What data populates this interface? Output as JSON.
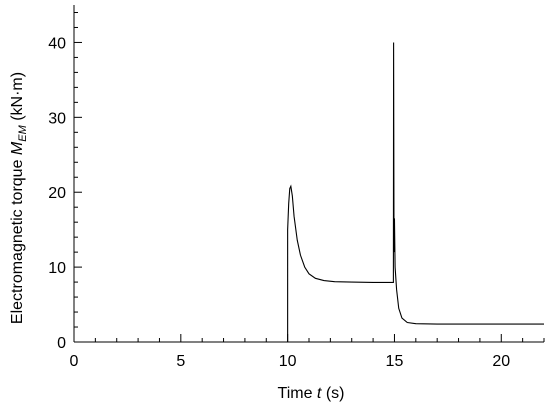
{
  "chart_data": {
    "type": "line",
    "xlabel": {
      "prefix": "Time ",
      "var": "t",
      "suffix": " (s)"
    },
    "ylabel": {
      "prefix": "Electromagnetic torque ",
      "var": "M",
      "sub": "EM",
      "suffix": " (kN·m)"
    },
    "xlim": [
      0,
      22
    ],
    "ylim": [
      0,
      45
    ],
    "x_ticks": [
      0,
      5,
      10,
      15,
      20
    ],
    "y_ticks": [
      0,
      10,
      20,
      30,
      40
    ],
    "x_tick_labels": [
      "0",
      "5",
      "10",
      "15",
      "20"
    ],
    "y_tick_labels": [
      "0",
      "10",
      "20",
      "30",
      "40"
    ],
    "x_minor_step": 1,
    "y_minor_step": 2,
    "grid": false,
    "series": [
      {
        "color": "#000000",
        "points": [
          [
            0,
            0
          ],
          [
            10.0,
            0
          ],
          [
            10.0,
            15.0
          ],
          [
            10.05,
            18.5
          ],
          [
            10.1,
            20.5
          ],
          [
            10.15,
            20.8
          ],
          [
            10.22,
            19.5
          ],
          [
            10.3,
            16.8
          ],
          [
            10.45,
            13.6
          ],
          [
            10.6,
            11.6
          ],
          [
            10.8,
            10.0
          ],
          [
            11.0,
            9.1
          ],
          [
            11.3,
            8.5
          ],
          [
            11.7,
            8.2
          ],
          [
            12.2,
            8.05
          ],
          [
            13.0,
            8.0
          ],
          [
            14.0,
            7.95
          ],
          [
            14.95,
            7.95
          ],
          [
            14.96,
            40.0
          ],
          [
            14.98,
            12.0
          ],
          [
            15.0,
            16.5
          ],
          [
            15.03,
            10.0
          ],
          [
            15.1,
            7.0
          ],
          [
            15.2,
            4.5
          ],
          [
            15.35,
            3.2
          ],
          [
            15.6,
            2.6
          ],
          [
            16.0,
            2.45
          ],
          [
            17.0,
            2.4
          ],
          [
            22.0,
            2.4
          ]
        ]
      }
    ]
  }
}
